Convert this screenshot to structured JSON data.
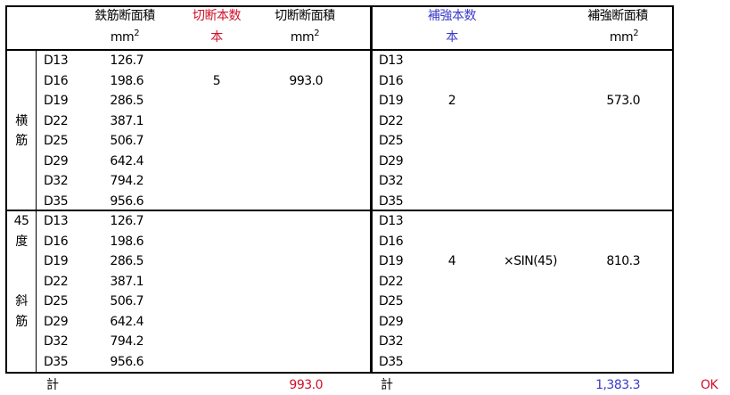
{
  "header": {
    "bar_area": "鉄筋断面積",
    "cut_count": "切断本数",
    "cut_area": "切断断面積",
    "reinf_count": "補強本数",
    "reinf_area": "補強断面積",
    "unit_mm": "mm",
    "unit_sq": "2",
    "unit_pcs": "本",
    "colors": {
      "cut_count": "#d0102a",
      "reinf_count": "#3a3ac8"
    }
  },
  "sections": [
    {
      "labels": [
        {
          "row": 3,
          "text": "横"
        },
        {
          "row": 4,
          "text": "筋"
        }
      ],
      "rows": [
        {
          "bar": "D13",
          "area": "126.7",
          "cut_count": "",
          "cut_area": "",
          "rbar": "D13",
          "r_count": "",
          "r_factor": "",
          "r_area": ""
        },
        {
          "bar": "D16",
          "area": "198.6",
          "cut_count": "5",
          "cut_area": "993.0",
          "rbar": "D16",
          "r_count": "",
          "r_factor": "",
          "r_area": ""
        },
        {
          "bar": "D19",
          "area": "286.5",
          "cut_count": "",
          "cut_area": "",
          "rbar": "D19",
          "r_count": "2",
          "r_factor": "",
          "r_area": "573.0"
        },
        {
          "bar": "D22",
          "area": "387.1",
          "cut_count": "",
          "cut_area": "",
          "rbar": "D22",
          "r_count": "",
          "r_factor": "",
          "r_area": ""
        },
        {
          "bar": "D25",
          "area": "506.7",
          "cut_count": "",
          "cut_area": "",
          "rbar": "D25",
          "r_count": "",
          "r_factor": "",
          "r_area": ""
        },
        {
          "bar": "D29",
          "area": "642.4",
          "cut_count": "",
          "cut_area": "",
          "rbar": "D29",
          "r_count": "",
          "r_factor": "",
          "r_area": ""
        },
        {
          "bar": "D32",
          "area": "794.2",
          "cut_count": "",
          "cut_area": "",
          "rbar": "D32",
          "r_count": "",
          "r_factor": "",
          "r_area": ""
        },
        {
          "bar": "D35",
          "area": "956.6",
          "cut_count": "",
          "cut_area": "",
          "rbar": "D35",
          "r_count": "",
          "r_factor": "",
          "r_area": ""
        }
      ]
    },
    {
      "labels": [
        {
          "row": 0,
          "text": "45"
        },
        {
          "row": 1,
          "text": "度"
        },
        {
          "row": 4,
          "text": "斜"
        },
        {
          "row": 5,
          "text": "筋"
        }
      ],
      "rows": [
        {
          "bar": "D13",
          "area": "126.7",
          "cut_count": "",
          "cut_area": "",
          "rbar": "D13",
          "r_count": "",
          "r_factor": "",
          "r_area": ""
        },
        {
          "bar": "D16",
          "area": "198.6",
          "cut_count": "",
          "cut_area": "",
          "rbar": "D16",
          "r_count": "",
          "r_factor": "",
          "r_area": ""
        },
        {
          "bar": "D19",
          "area": "286.5",
          "cut_count": "",
          "cut_area": "",
          "rbar": "D19",
          "r_count": "4",
          "r_factor": "×SIN(45)",
          "r_area": "810.3"
        },
        {
          "bar": "D22",
          "area": "387.1",
          "cut_count": "",
          "cut_area": "",
          "rbar": "D22",
          "r_count": "",
          "r_factor": "",
          "r_area": ""
        },
        {
          "bar": "D25",
          "area": "506.7",
          "cut_count": "",
          "cut_area": "",
          "rbar": "D25",
          "r_count": "",
          "r_factor": "",
          "r_area": ""
        },
        {
          "bar": "D29",
          "area": "642.4",
          "cut_count": "",
          "cut_area": "",
          "rbar": "D29",
          "r_count": "",
          "r_factor": "",
          "r_area": ""
        },
        {
          "bar": "D32",
          "area": "794.2",
          "cut_count": "",
          "cut_area": "",
          "rbar": "D32",
          "r_count": "",
          "r_factor": "",
          "r_area": ""
        },
        {
          "bar": "D35",
          "area": "956.6",
          "cut_count": "",
          "cut_area": "",
          "rbar": "D35",
          "r_count": "",
          "r_factor": "",
          "r_area": ""
        }
      ]
    }
  ],
  "totals": {
    "label_left": "計",
    "cut_total": "993.0",
    "label_right": "計",
    "reinf_total": "1,383.3",
    "status": "OK",
    "colors": {
      "cut_total": "#d0102a",
      "reinf_total": "#3a3ac8",
      "status": "#d0102a"
    }
  }
}
